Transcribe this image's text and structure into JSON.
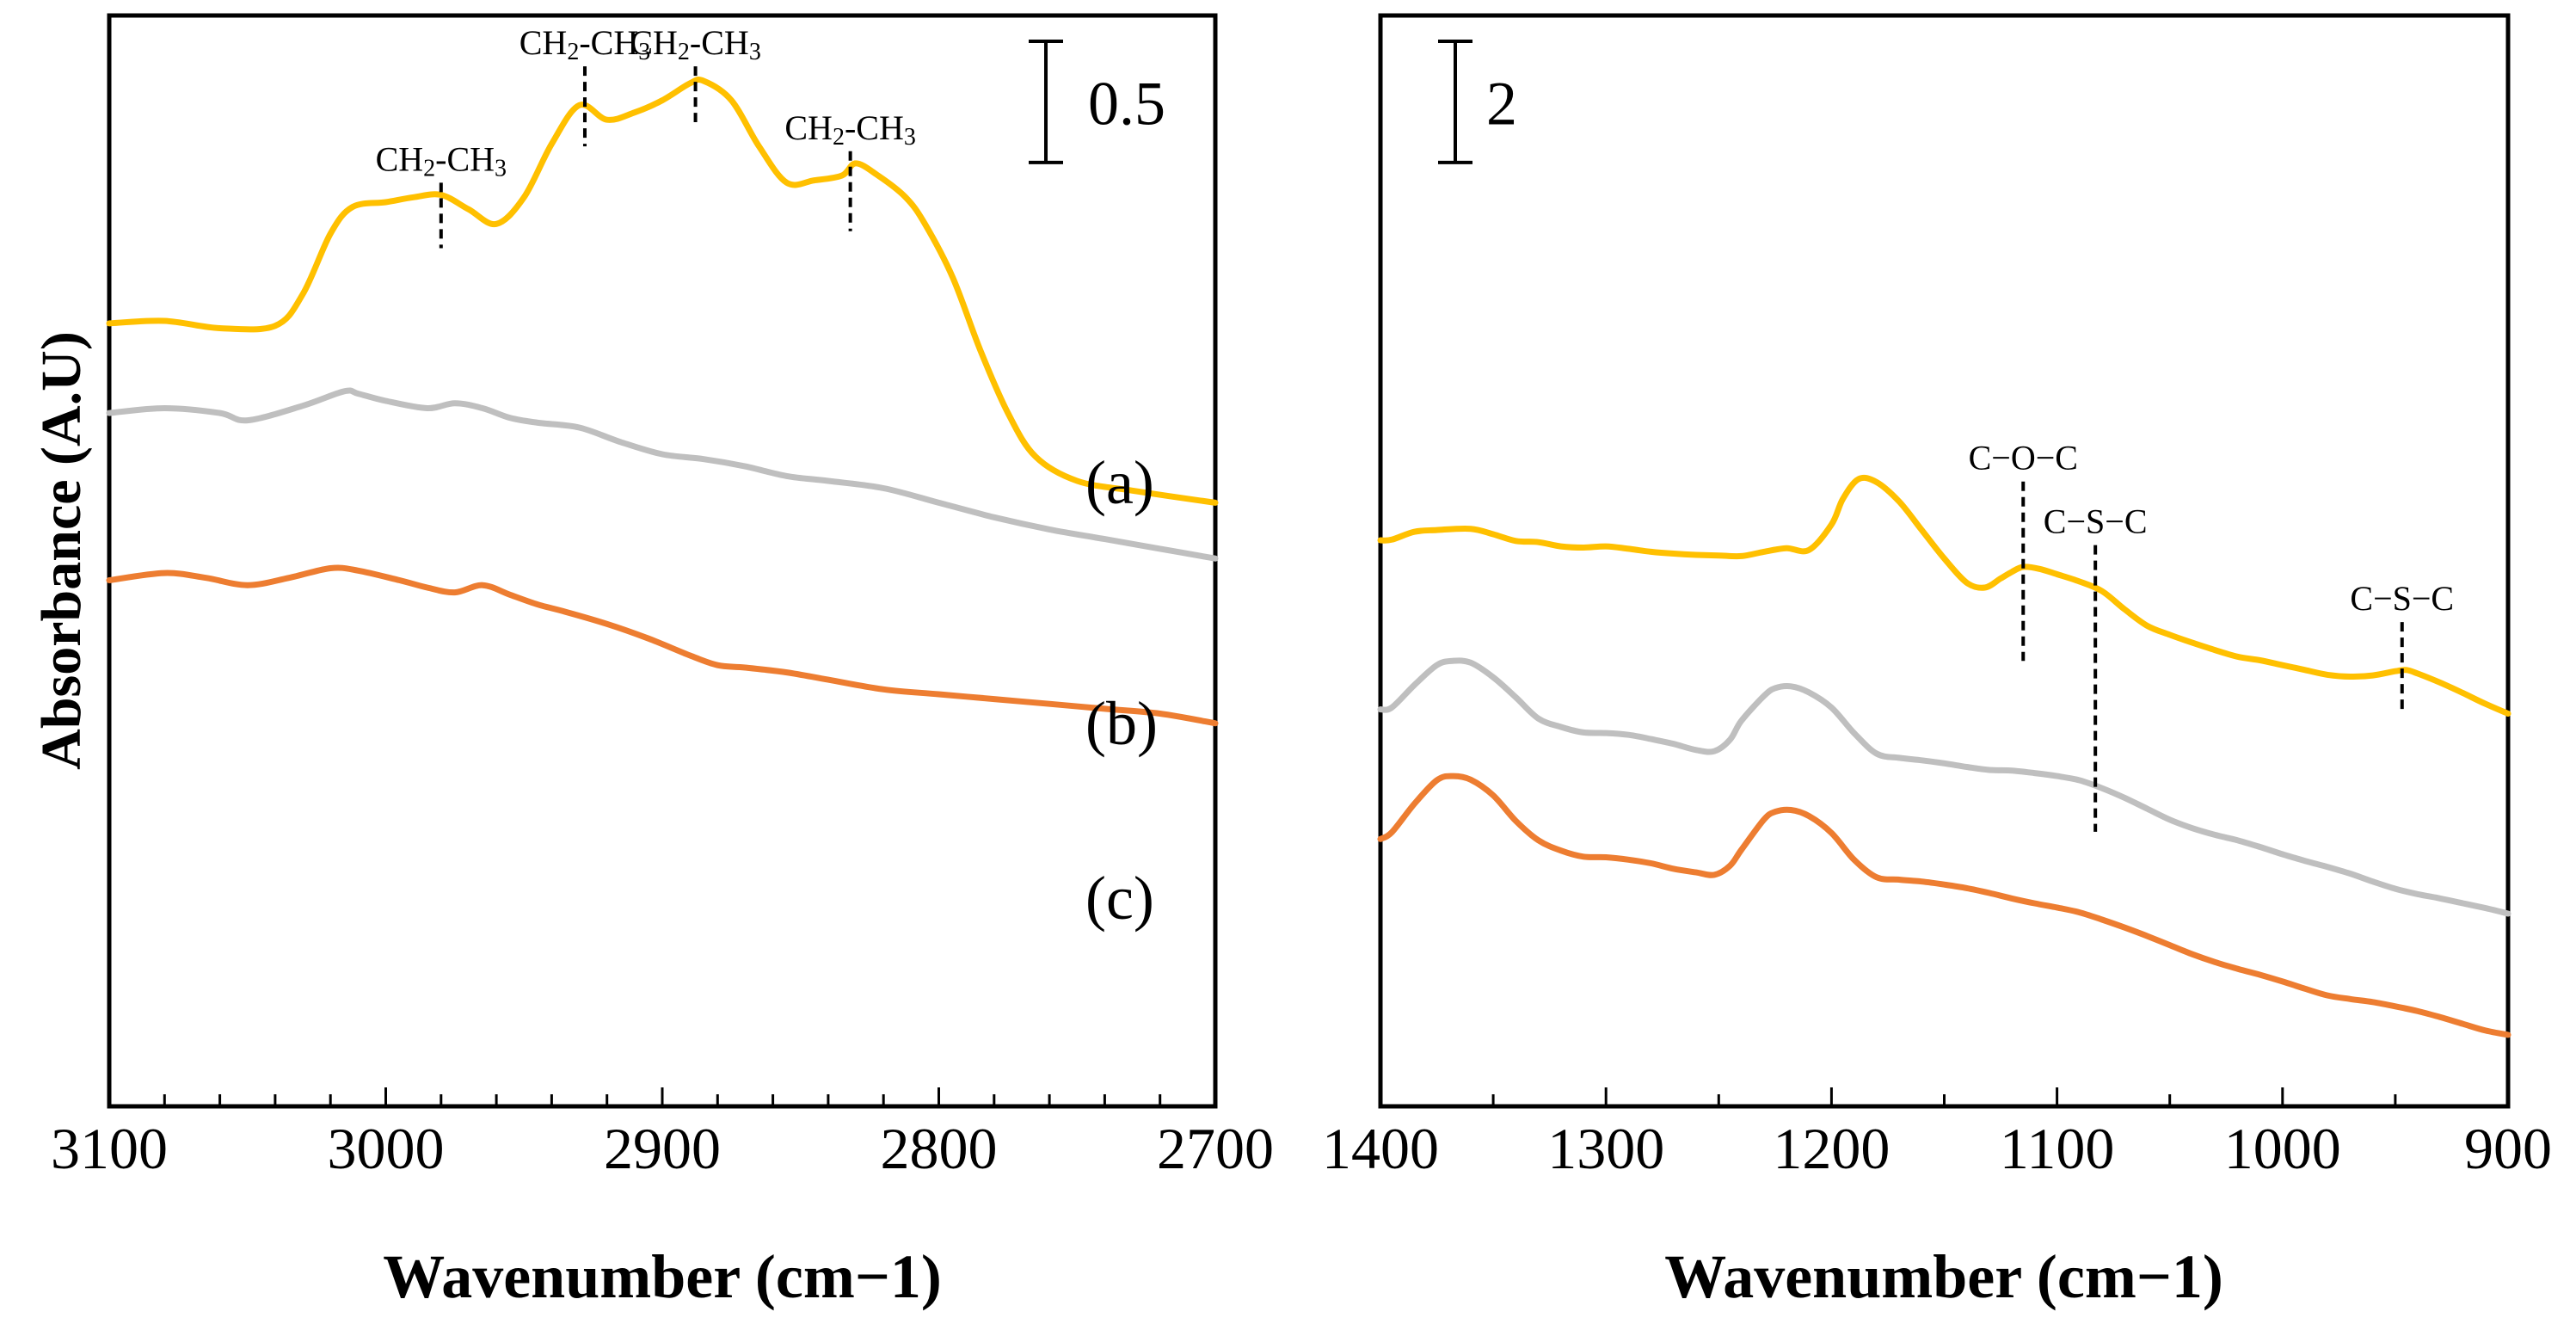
{
  "chart_data": [
    {
      "type": "line",
      "panel": "left",
      "xlabel": "Wavenumber (cm−1)",
      "ylabel": "Absorbance (A.U)",
      "xlim": [
        3100,
        2700
      ],
      "ylim": [
        0,
        4.5
      ],
      "xticks": [
        "3100",
        "3000",
        "2900",
        "2800",
        "2700"
      ],
      "scale_bar": {
        "label": "0.5",
        "value": 0.5
      },
      "sample_labels": [
        "(a)",
        "(b)",
        "(c)"
      ],
      "series": [
        {
          "name": "(a)",
          "color": "#FFC000",
          "x": [
            3100,
            3080,
            3060,
            3040,
            3030,
            3020,
            3012,
            3000,
            2990,
            2980,
            2970,
            2960,
            2950,
            2940,
            2930,
            2920,
            2910,
            2900,
            2890,
            2885,
            2875,
            2865,
            2855,
            2845,
            2835,
            2830,
            2822,
            2812,
            2805,
            2795,
            2785,
            2775,
            2765,
            2750,
            2730,
            2700
          ],
          "y": [
            3.23,
            3.24,
            3.21,
            3.22,
            3.35,
            3.6,
            3.71,
            3.73,
            3.75,
            3.76,
            3.7,
            3.64,
            3.75,
            3.97,
            4.13,
            4.07,
            4.1,
            4.15,
            4.22,
            4.23,
            4.15,
            3.96,
            3.81,
            3.82,
            3.84,
            3.89,
            3.84,
            3.75,
            3.64,
            3.42,
            3.12,
            2.86,
            2.68,
            2.58,
            2.54,
            2.49
          ]
        },
        {
          "name": "(b)",
          "color": "#BFBFBF",
          "x": [
            3100,
            3080,
            3060,
            3050,
            3030,
            3015,
            3010,
            3000,
            2985,
            2975,
            2965,
            2955,
            2945,
            2930,
            2915,
            2900,
            2885,
            2870,
            2855,
            2840,
            2820,
            2800,
            2780,
            2760,
            2740,
            2720,
            2700
          ],
          "y": [
            2.86,
            2.88,
            2.86,
            2.83,
            2.89,
            2.95,
            2.94,
            2.91,
            2.88,
            2.9,
            2.88,
            2.84,
            2.82,
            2.8,
            2.74,
            2.69,
            2.67,
            2.64,
            2.6,
            2.58,
            2.55,
            2.49,
            2.43,
            2.38,
            2.34,
            2.3,
            2.26
          ]
        },
        {
          "name": "(c)",
          "color": "#ED7D31",
          "x": [
            3100,
            3080,
            3065,
            3050,
            3035,
            3020,
            3010,
            2995,
            2985,
            2975,
            2965,
            2955,
            2945,
            2935,
            2920,
            2905,
            2890,
            2880,
            2870,
            2855,
            2840,
            2820,
            2800,
            2780,
            2760,
            2740,
            2720,
            2700
          ],
          "y": [
            2.17,
            2.2,
            2.18,
            2.15,
            2.18,
            2.22,
            2.21,
            2.17,
            2.14,
            2.12,
            2.15,
            2.11,
            2.07,
            2.04,
            1.99,
            1.93,
            1.86,
            1.82,
            1.81,
            1.79,
            1.76,
            1.72,
            1.7,
            1.68,
            1.66,
            1.64,
            1.62,
            1.58
          ]
        }
      ],
      "annotations": [
        {
          "label": "CH2-CH3",
          "base": "CH",
          "sub1": "2",
          "mid": "-CH",
          "sub2": "3",
          "x": 2980,
          "line_y": [
            3.54,
            3.81
          ]
        },
        {
          "label": "CH2-CH3",
          "base": "CH",
          "sub1": "2",
          "mid": "-CH",
          "sub2": "3",
          "x": 2928,
          "line_y": [
            3.96,
            4.29
          ]
        },
        {
          "label": "CH2-CH3",
          "base": "CH",
          "sub1": "2",
          "mid": "-CH",
          "sub2": "3",
          "x": 2888,
          "line_y": [
            4.06,
            4.29
          ]
        },
        {
          "label": "CH2-CH3",
          "base": "CH",
          "sub1": "2",
          "mid": "-CH",
          "sub2": "3",
          "x": 2832,
          "line_y": [
            3.61,
            3.94
          ]
        }
      ]
    },
    {
      "type": "line",
      "panel": "right",
      "xlabel": "Wavenumber (cm−1)",
      "xlim": [
        1400,
        900
      ],
      "ylim": [
        0,
        18
      ],
      "xticks": [
        "1400",
        "1300",
        "1200",
        "1100",
        "1000",
        "900"
      ],
      "scale_bar": {
        "label": "2",
        "value": 2
      },
      "series": [
        {
          "name": "(a)",
          "color": "#FFC000",
          "x": [
            1400,
            1395,
            1385,
            1375,
            1360,
            1350,
            1340,
            1330,
            1320,
            1310,
            1300,
            1290,
            1280,
            1270,
            1260,
            1250,
            1240,
            1230,
            1220,
            1210,
            1200,
            1195,
            1188,
            1180,
            1170,
            1160,
            1150,
            1140,
            1132,
            1125,
            1120,
            1115,
            1108,
            1100,
            1090,
            1080,
            1070,
            1060,
            1050,
            1040,
            1030,
            1020,
            1010,
            1000,
            990,
            980,
            970,
            960,
            950,
            945,
            940,
            930,
            920,
            910,
            900
          ],
          "y": [
            9.34,
            9.35,
            9.48,
            9.51,
            9.53,
            9.44,
            9.33,
            9.31,
            9.24,
            9.22,
            9.24,
            9.2,
            9.15,
            9.12,
            9.1,
            9.09,
            9.08,
            9.15,
            9.21,
            9.18,
            9.6,
            10.02,
            10.35,
            10.3,
            9.98,
            9.51,
            9.04,
            8.64,
            8.56,
            8.71,
            8.82,
            8.9,
            8.87,
            8.78,
            8.66,
            8.5,
            8.2,
            7.93,
            7.78,
            7.65,
            7.53,
            7.42,
            7.36,
            7.28,
            7.2,
            7.12,
            7.09,
            7.11,
            7.18,
            7.2,
            7.14,
            6.99,
            6.82,
            6.64,
            6.48
          ]
        },
        {
          "name": "(b)",
          "color": "#BFBFBF",
          "x": [
            1400,
            1395,
            1385,
            1375,
            1368,
            1360,
            1350,
            1340,
            1330,
            1320,
            1310,
            1300,
            1290,
            1280,
            1270,
            1260,
            1252,
            1245,
            1240,
            1230,
            1225,
            1218,
            1210,
            1200,
            1190,
            1180,
            1170,
            1160,
            1150,
            1140,
            1130,
            1120,
            1110,
            1100,
            1090,
            1080,
            1070,
            1060,
            1050,
            1040,
            1030,
            1020,
            1010,
            1000,
            990,
            980,
            970,
            960,
            950,
            940,
            930,
            920,
            910,
            900
          ],
          "y": [
            6.55,
            6.58,
            6.95,
            7.28,
            7.35,
            7.32,
            7.08,
            6.75,
            6.4,
            6.26,
            6.17,
            6.16,
            6.13,
            6.06,
            5.98,
            5.88,
            5.86,
            6.05,
            6.36,
            6.77,
            6.9,
            6.93,
            6.83,
            6.58,
            6.16,
            5.82,
            5.75,
            5.71,
            5.66,
            5.6,
            5.55,
            5.54,
            5.5,
            5.45,
            5.38,
            5.25,
            5.09,
            4.91,
            4.73,
            4.59,
            4.48,
            4.39,
            4.28,
            4.16,
            4.05,
            3.95,
            3.84,
            3.71,
            3.59,
            3.5,
            3.43,
            3.35,
            3.27,
            3.18
          ]
        },
        {
          "name": "(c)",
          "color": "#ED7D31",
          "x": [
            1400,
            1395,
            1385,
            1375,
            1368,
            1360,
            1350,
            1340,
            1330,
            1320,
            1310,
            1300,
            1290,
            1280,
            1270,
            1260,
            1252,
            1245,
            1240,
            1230,
            1225,
            1218,
            1210,
            1200,
            1190,
            1180,
            1170,
            1160,
            1150,
            1140,
            1130,
            1120,
            1110,
            1100,
            1090,
            1080,
            1070,
            1060,
            1050,
            1040,
            1030,
            1020,
            1010,
            1000,
            990,
            980,
            970,
            960,
            950,
            940,
            930,
            920,
            910,
            900
          ],
          "y": [
            4.41,
            4.52,
            4.99,
            5.38,
            5.45,
            5.39,
            5.13,
            4.71,
            4.39,
            4.22,
            4.12,
            4.11,
            4.07,
            4.01,
            3.92,
            3.86,
            3.82,
            3.97,
            4.23,
            4.73,
            4.86,
            4.89,
            4.79,
            4.51,
            4.07,
            3.78,
            3.74,
            3.71,
            3.66,
            3.6,
            3.52,
            3.43,
            3.35,
            3.28,
            3.2,
            3.08,
            2.95,
            2.81,
            2.66,
            2.51,
            2.38,
            2.27,
            2.17,
            2.06,
            1.94,
            1.83,
            1.77,
            1.72,
            1.65,
            1.57,
            1.47,
            1.36,
            1.25,
            1.18
          ]
        }
      ],
      "annotations": [
        {
          "label": "C−O−C",
          "x": 1115,
          "line_y": [
            7.35,
            10.31
          ]
        },
        {
          "label": "C−S−C",
          "x": 1083,
          "line_y": [
            4.53,
            9.26
          ]
        },
        {
          "label": "C−S−C",
          "x": 947,
          "line_y": [
            6.5,
            7.99
          ]
        }
      ]
    }
  ]
}
